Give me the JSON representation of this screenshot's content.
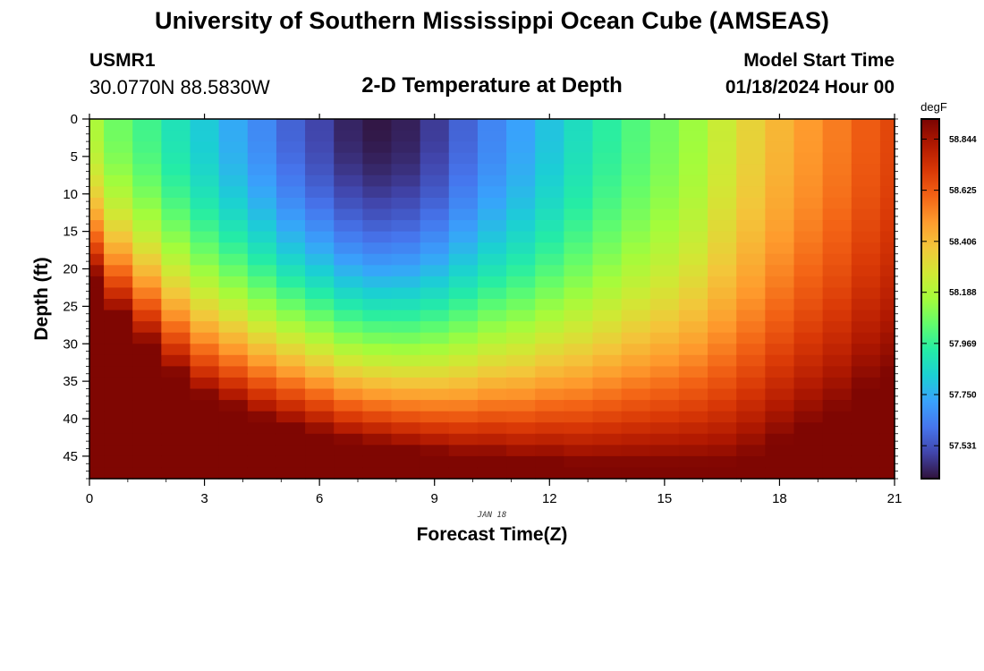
{
  "page": {
    "title": "University of Southern Mississippi Ocean Cube (AMSEAS)",
    "footer_title": "University of Southern Mississippi Ocean Cube (AMSEAS)",
    "station": "USMR1",
    "coords": "30.0770N  88.5830W",
    "subtitle": "2-D Temperature at Depth",
    "model_start_label": "Model Start Time",
    "model_start_value": "01/18/2024 Hour 00"
  },
  "colors": {
    "scale": [
      "#30123b",
      "#4145ab",
      "#4675ed",
      "#39a2fc",
      "#1bcfd4",
      "#24eca6",
      "#61fc6c",
      "#a4fc3b",
      "#d1e834",
      "#f3c63a",
      "#fe9b2d",
      "#f36315",
      "#d93806",
      "#b11901",
      "#7a0402"
    ]
  },
  "chart_data": {
    "type": "heatmap",
    "title": "2-D Temperature at Depth",
    "xlabel": "Forecast Time(Z)",
    "ylabel": "Depth (ft)",
    "x_ticks": [
      "0",
      "3",
      "6",
      "9",
      "12",
      "15",
      "18",
      "21"
    ],
    "y_ticks": [
      "0",
      "5",
      "10",
      "15",
      "20",
      "25",
      "30",
      "35",
      "40",
      "45"
    ],
    "xlim": [
      0,
      21
    ],
    "ylim": [
      48,
      0
    ],
    "date_label": "JAN 18",
    "colorbar": {
      "unit": "degF",
      "ticks": [
        "58.844",
        "58.625",
        "58.406",
        "58.188",
        "57.969",
        "57.750",
        "57.531"
      ],
      "tick_values": [
        58.844,
        58.625,
        58.406,
        58.188,
        57.969,
        57.75,
        57.531
      ],
      "range": [
        57.39,
        58.93
      ]
    },
    "grid": {
      "time_hours": [
        0,
        0.75,
        1.5,
        2.25,
        3,
        3.75,
        4.5,
        5.25,
        6,
        6.75,
        7.5,
        8.25,
        9,
        9.75,
        10.5,
        11.25,
        12,
        12.75,
        13.5,
        14.25,
        15,
        15.75,
        16.5,
        17.25,
        18,
        18.75,
        19.5,
        20.25,
        21
      ],
      "depth_step_ft": 1.5,
      "depth_levels": 32,
      "surface_temps_degF": [
        58.18,
        58.07,
        57.99,
        57.9,
        57.82,
        57.74,
        57.66,
        57.57,
        57.5,
        57.43,
        57.4,
        57.42,
        57.48,
        57.57,
        57.65,
        57.72,
        57.8,
        57.88,
        57.95,
        58.02,
        58.08,
        58.15,
        58.25,
        58.34,
        58.42,
        58.49,
        58.55,
        58.62,
        58.67
      ],
      "bottom_temp_degF": 58.92,
      "mixed_layer_depth_ft": [
        5,
        10,
        14,
        18,
        21,
        22.5,
        24,
        25,
        26,
        27,
        27.5,
        28,
        28.5,
        29,
        29,
        29.5,
        29.5,
        30,
        30,
        30,
        30,
        30,
        30,
        29,
        27,
        25,
        23,
        20,
        18
      ]
    }
  }
}
